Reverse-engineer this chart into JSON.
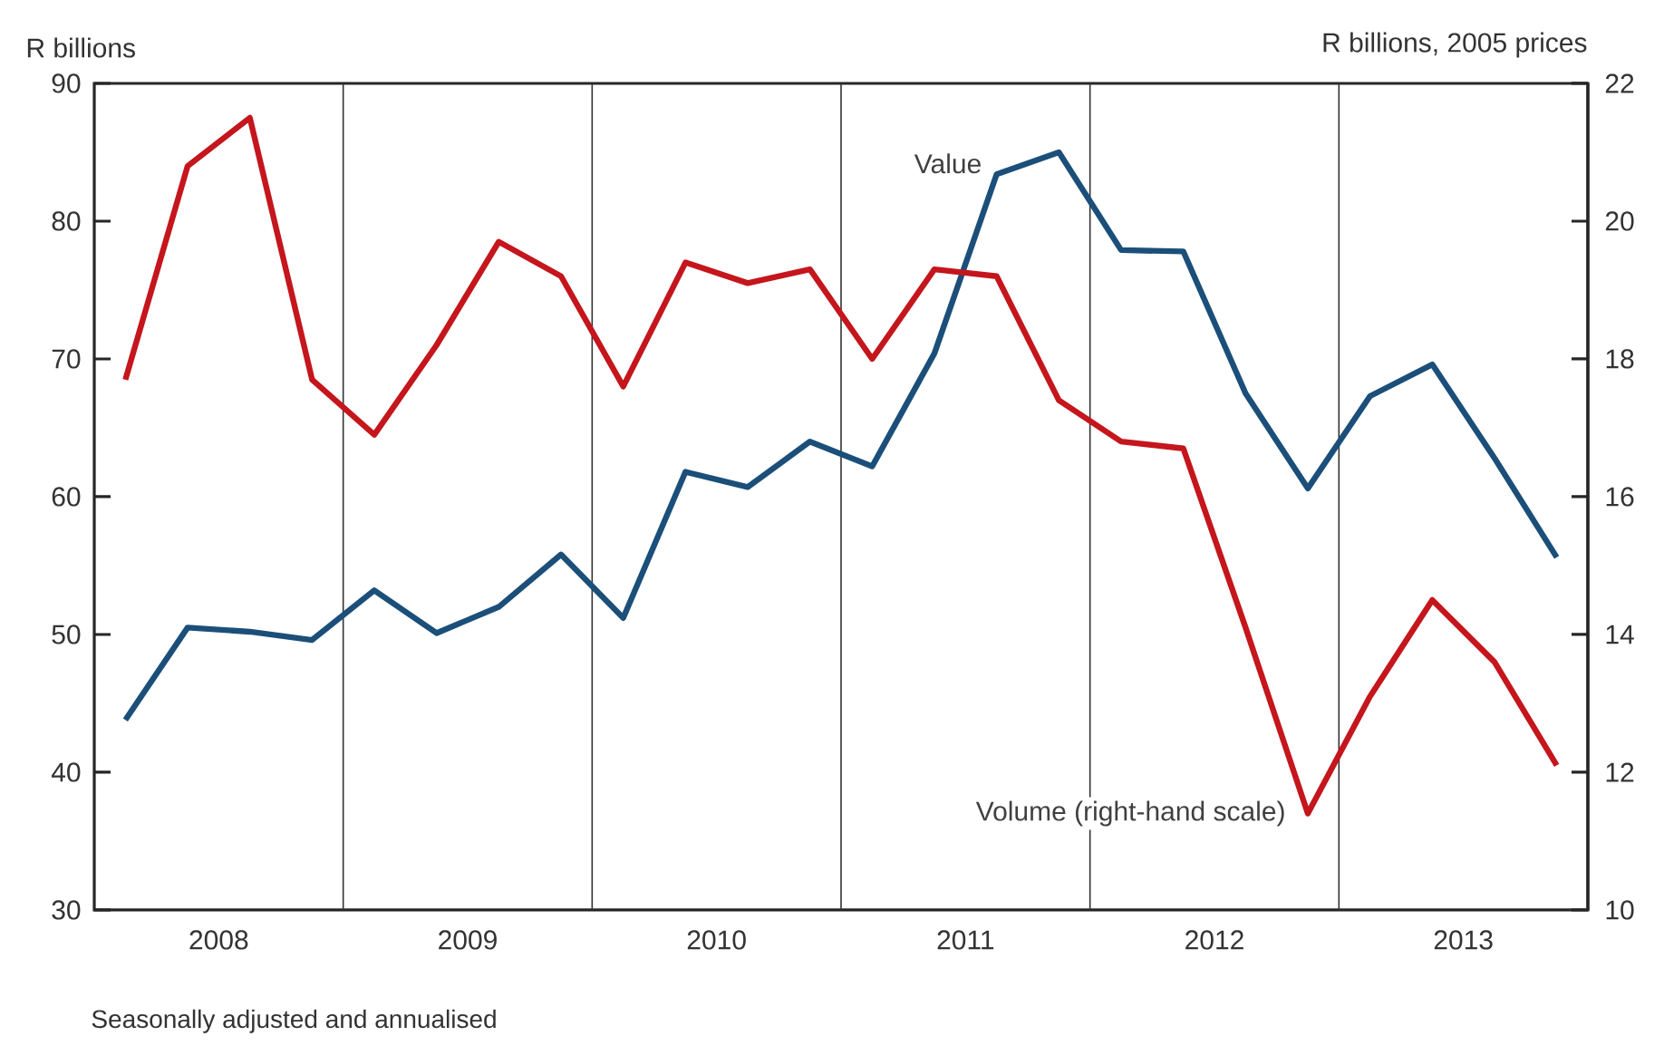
{
  "chart_data": {
    "type": "line",
    "ylabel": "R billions",
    "y2label": "R billions, 2005 prices",
    "annotations": [
      "Seasonally adjusted and annualised"
    ],
    "x": [
      2008.125,
      2008.375,
      2008.625,
      2008.875,
      2009.125,
      2009.375,
      2009.625,
      2009.875,
      2010.125,
      2010.375,
      2010.625,
      2010.875,
      2011.125,
      2011.375,
      2011.625,
      2011.875,
      2012.125,
      2012.375,
      2012.625,
      2012.875,
      2013.125,
      2013.375,
      2013.625,
      2013.875
    ],
    "xlim": [
      2008,
      2014
    ],
    "xticks": [
      {
        "value": 2008.5,
        "label": "2008"
      },
      {
        "value": 2009.5,
        "label": "2009"
      },
      {
        "value": 2010.5,
        "label": "2010"
      },
      {
        "value": 2011.5,
        "label": "2011"
      },
      {
        "value": 2012.5,
        "label": "2012"
      },
      {
        "value": 2013.5,
        "label": "2013"
      }
    ],
    "ylim": [
      30,
      90
    ],
    "yticks": [
      30,
      40,
      50,
      60,
      70,
      80,
      90
    ],
    "y2lim": [
      10,
      22
    ],
    "y2ticks": [
      10,
      12,
      14,
      16,
      18,
      20,
      22
    ],
    "ref_lines": [
      {
        "axis": "x",
        "value": 2009,
        "color": "#333333"
      },
      {
        "axis": "x",
        "value": 2010,
        "color": "#333333"
      },
      {
        "axis": "x",
        "value": 2011,
        "color": "#333333"
      },
      {
        "axis": "x",
        "value": 2012,
        "color": "#333333"
      },
      {
        "axis": "x",
        "value": 2013,
        "color": "#333333"
      }
    ],
    "series": [
      {
        "name": "Value",
        "color": "#1b4f7a",
        "axis": "y",
        "values": [
          43.8,
          50.5,
          50.2,
          49.6,
          53.2,
          50.1,
          52.0,
          55.8,
          51.2,
          61.8,
          60.7,
          64.0,
          62.2,
          70.4,
          83.4,
          85.0,
          77.9,
          77.8,
          67.5,
          60.6,
          67.3,
          69.6,
          62.8,
          55.6
        ]
      },
      {
        "name": "Volume (right-hand scale)",
        "color": "#c4161c",
        "axis": "y2",
        "values": [
          17.7,
          20.8,
          21.5,
          17.7,
          16.9,
          18.2,
          19.7,
          19.2,
          17.6,
          19.4,
          19.1,
          19.3,
          18.0,
          19.3,
          19.2,
          17.4,
          16.8,
          16.7,
          14.1,
          11.4,
          13.1,
          14.5,
          13.6,
          12.1
        ]
      }
    ]
  }
}
